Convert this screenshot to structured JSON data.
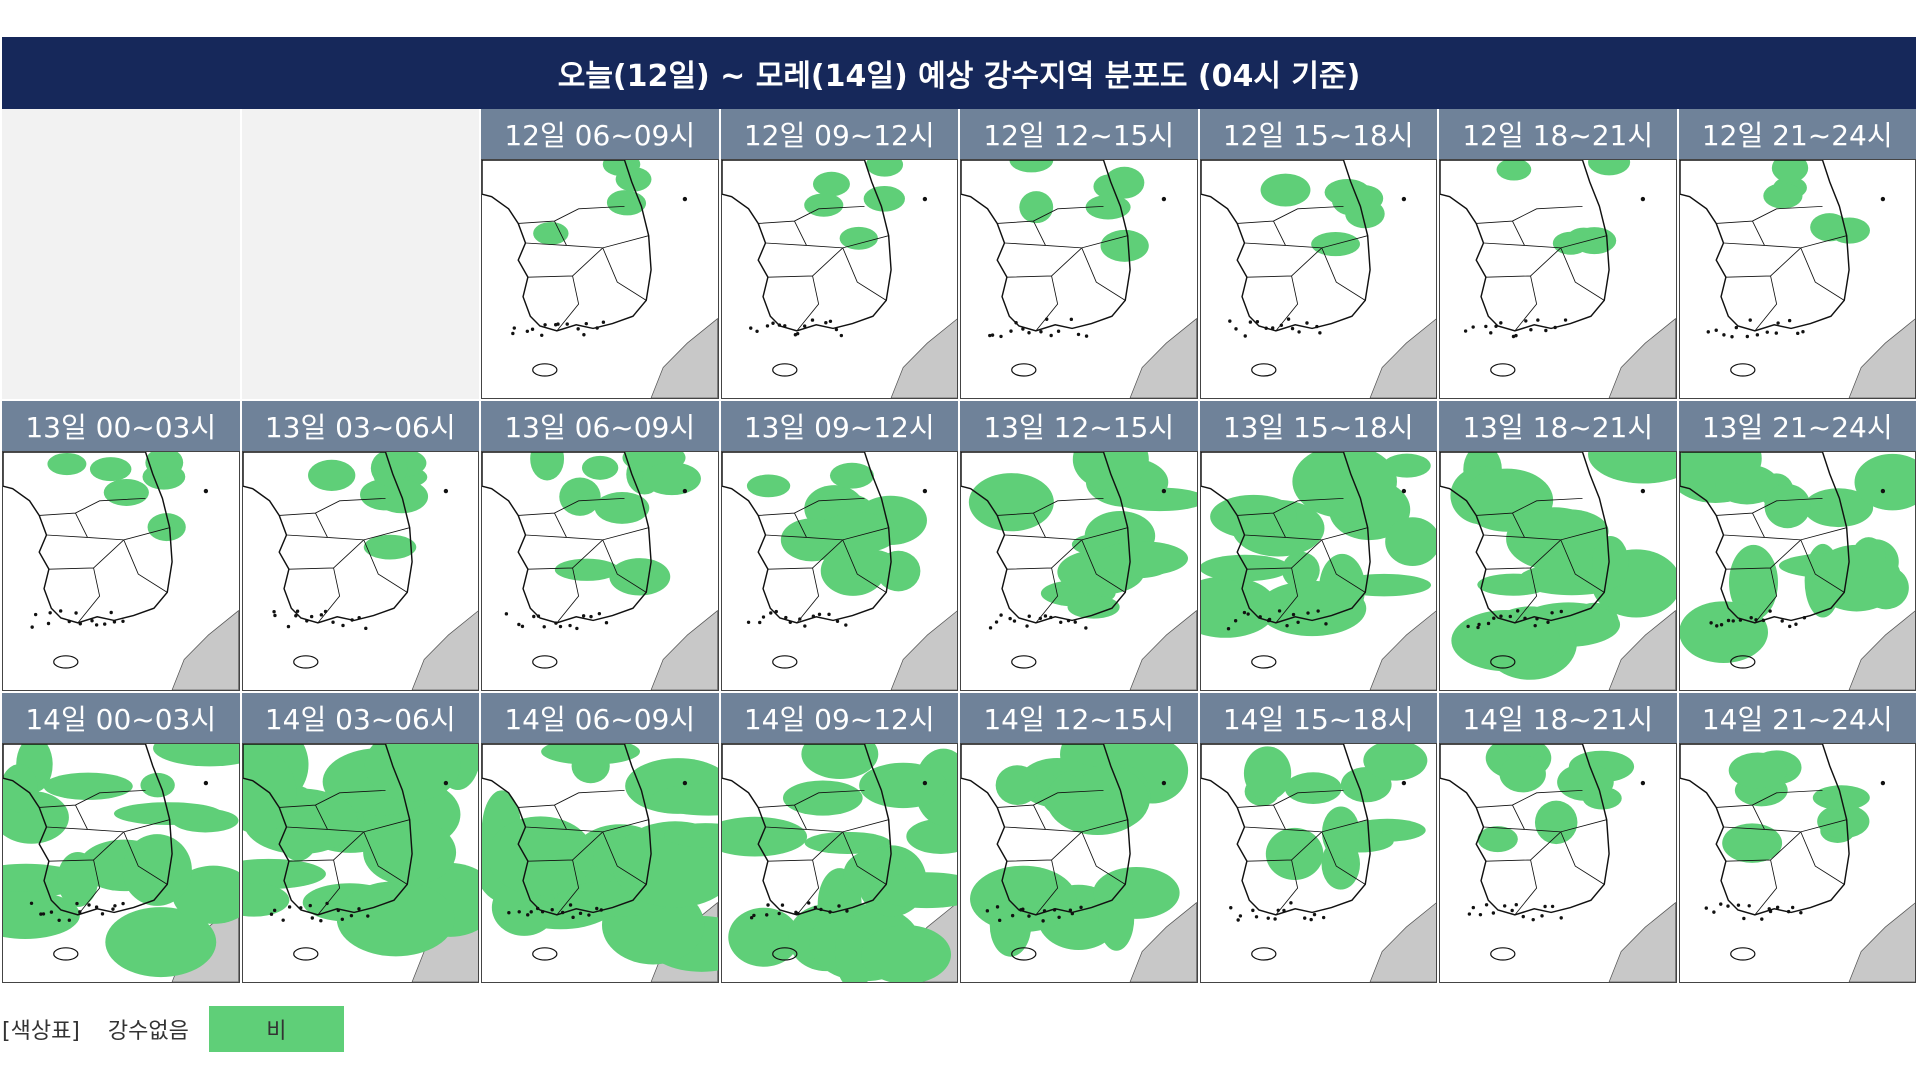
{
  "header": {
    "title": "오늘(12일) ~ 모레(14일) 예상 강수지역 분포도 (04시 기준)"
  },
  "rows": [
    {
      "panels": [
        "12일 06~09시",
        "12일 09~12시",
        "12일 12~15시",
        "12일 15~18시",
        "12일 18~21시",
        "12일 21~24시"
      ]
    },
    {
      "panels": [
        "13일 00~03시",
        "13일 03~06시",
        "13일 06~09시",
        "13일 09~12시",
        "13일 12~15시",
        "13일 15~18시",
        "13일 18~21시",
        "13일 21~24시"
      ]
    },
    {
      "panels": [
        "14일 00~03시",
        "14일 03~06시",
        "14일 06~09시",
        "14일 09~12시",
        "14일 12~15시",
        "14일 15~18시",
        "14일 18~21시",
        "14일 21~24시"
      ]
    }
  ],
  "legend": {
    "label": "[색상표]",
    "items": [
      "강수없음",
      "비"
    ]
  }
}
